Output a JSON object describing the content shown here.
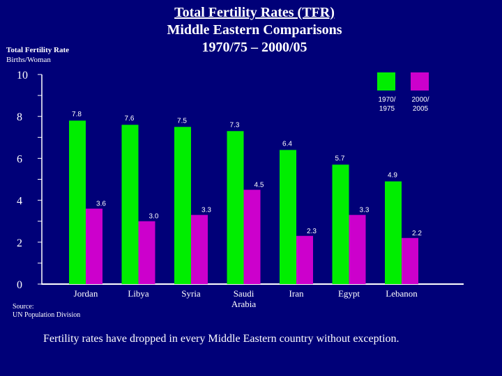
{
  "colors": {
    "background": "#000078",
    "series_1970": "#00ee00",
    "series_2000": "#cc00cc",
    "axis": "#ffffff"
  },
  "source_lines": [
    "Source:",
    "UN Population Division"
  ],
  "caption": "Fertility rates have dropped in every Middle Eastern country without exception.",
  "chart_data": {
    "type": "bar",
    "title_lines": [
      "Total Fertility Rates (TFR)",
      "Middle Eastern Comparisons",
      "1970/75 – 2000/05"
    ],
    "ylabel_lines": [
      "Total Fertility Rate",
      "Births/Woman"
    ],
    "xlabel": "",
    "ylim": [
      0,
      10
    ],
    "yticks": [
      "0",
      "2",
      "4",
      "6",
      "8",
      "10"
    ],
    "categories": [
      "Jordan",
      "Libya",
      "Syria",
      "Saudi Arabia",
      "Iran",
      "Egypt",
      "Lebanon"
    ],
    "category_display": [
      [
        "Jordan"
      ],
      [
        "Libya"
      ],
      [
        "Syria"
      ],
      [
        "Saudi",
        "Arabia"
      ],
      [
        "Iran"
      ],
      [
        "Egypt"
      ],
      [
        "Lebanon"
      ]
    ],
    "series": [
      {
        "name": "1970/75",
        "legend_lines": [
          "1970/",
          "1975"
        ],
        "values": [
          7.8,
          7.6,
          7.5,
          7.3,
          6.4,
          5.7,
          4.9
        ],
        "labels": [
          "7.8",
          "7.6",
          "7.5",
          "7.3",
          "6.4",
          "5.7",
          "4.9"
        ]
      },
      {
        "name": "2000/05",
        "legend_lines": [
          "2000/",
          "2005"
        ],
        "values": [
          3.6,
          3.0,
          3.3,
          4.5,
          2.3,
          3.3,
          2.2
        ],
        "labels": [
          "3.6",
          "3.0",
          "3.3",
          "4.5",
          "2.3",
          "3.3",
          "2.2"
        ]
      }
    ],
    "grid": false,
    "legend_position": "top-right"
  }
}
